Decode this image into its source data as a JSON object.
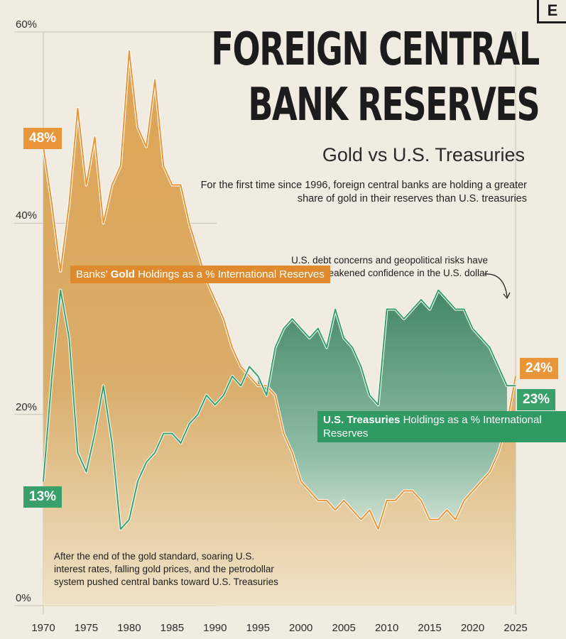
{
  "logo": "E",
  "title_line1": "FOREIGN CENTRAL",
  "title_line2": "BANK RESERVES",
  "subtitle": "Gold vs U.S. Treasuries",
  "intro": "For the first time since 1996, foreign central banks are holding a greater share of gold in their reserves than U.S. treasuries",
  "note_debt": "U.S. debt concerns and geopolitical risks have weakened confidence in the U.S. dollar",
  "note_bottom": "After the end of the gold standard, soaring U.S. interest rates, falling gold prices, and the petrodollar system pushed central banks toward U.S. Treasuries",
  "gold_label": {
    "prefix": "Banks' ",
    "bold": "Gold",
    "suffix": " Holdings as a % International Reserves"
  },
  "tsy_label": {
    "bold": "U.S. Treasuries",
    "suffix": " Holdings as a % International Reserves"
  },
  "badges": {
    "gold_start": "48%",
    "tsy_start": "13%",
    "gold_end": "24%",
    "tsy_end": "23%"
  },
  "colors": {
    "gold": "#e9963a",
    "gold_fill": "#d9a95c",
    "treasury": "#3aa06a",
    "treasury_fill": "#4f9a78",
    "background": "#f1ece1"
  },
  "chart_data": {
    "type": "area",
    "title": "FOREIGN CENTRAL BANK RESERVES",
    "subtitle": "Gold vs U.S. Treasuries",
    "xlim": [
      1970,
      2025
    ],
    "ylim": [
      0,
      60
    ],
    "y_ticks": [
      "60%",
      "40%",
      "20%",
      "0%"
    ],
    "y_tick_values": [
      60,
      40,
      20,
      0
    ],
    "x_ticks": [
      "1970",
      "1975",
      "1980",
      "1985",
      "1990",
      "1995",
      "2000",
      "2005",
      "2010",
      "2015",
      "2020",
      "2025"
    ],
    "x_tick_values": [
      1970,
      1975,
      1980,
      1985,
      1990,
      1995,
      2000,
      2005,
      2010,
      2015,
      2020,
      2025
    ],
    "grid": true,
    "series": [
      {
        "name": "Banks' Gold Holdings as a % International Reserves",
        "x": [
          1970,
          1971,
          1972,
          1973,
          1974,
          1975,
          1976,
          1977,
          1978,
          1979,
          1980,
          1981,
          1982,
          1983,
          1984,
          1985,
          1986,
          1987,
          1988,
          1989,
          1990,
          1991,
          1992,
          1993,
          1994,
          1995,
          1996,
          1997,
          1998,
          1999,
          2000,
          2001,
          2002,
          2003,
          2004,
          2005,
          2006,
          2007,
          2008,
          2009,
          2010,
          2011,
          2012,
          2013,
          2014,
          2015,
          2016,
          2017,
          2018,
          2019,
          2020,
          2021,
          2022,
          2023,
          2024,
          2025
        ],
        "values": [
          48,
          42,
          35,
          42,
          52,
          44,
          49,
          40,
          44,
          46,
          58,
          50,
          48,
          55,
          46,
          44,
          44,
          40,
          37,
          34,
          32,
          30,
          27,
          25,
          24,
          23,
          23,
          22,
          18,
          16,
          13,
          12,
          11,
          11,
          10,
          11,
          10,
          9,
          10,
          8,
          11,
          11,
          12,
          12,
          11,
          9,
          9,
          10,
          9,
          11,
          12,
          13,
          14,
          16,
          19,
          24
        ]
      },
      {
        "name": "U.S. Treasuries Holdings as a % International Reserves",
        "x": [
          1970,
          1971,
          1972,
          1973,
          1974,
          1975,
          1976,
          1977,
          1978,
          1979,
          1980,
          1981,
          1982,
          1983,
          1984,
          1985,
          1986,
          1987,
          1988,
          1989,
          1990,
          1991,
          1992,
          1993,
          1994,
          1995,
          1996,
          1997,
          1998,
          1999,
          2000,
          2001,
          2002,
          2003,
          2004,
          2005,
          2006,
          2007,
          2008,
          2009,
          2010,
          2011,
          2012,
          2013,
          2014,
          2015,
          2016,
          2017,
          2018,
          2019,
          2020,
          2021,
          2022,
          2023,
          2024,
          2025
        ],
        "values": [
          13,
          24,
          33,
          28,
          16,
          14,
          18,
          23,
          17,
          8,
          9,
          13,
          15,
          16,
          18,
          18,
          17,
          19,
          20,
          22,
          21,
          22,
          24,
          23,
          25,
          24,
          22,
          27,
          29,
          30,
          29,
          28,
          29,
          27,
          31,
          28,
          27,
          25,
          22,
          21,
          31,
          31,
          30,
          31,
          32,
          31,
          33,
          32,
          31,
          31,
          29,
          28,
          27,
          25,
          23,
          23
        ]
      }
    ]
  }
}
